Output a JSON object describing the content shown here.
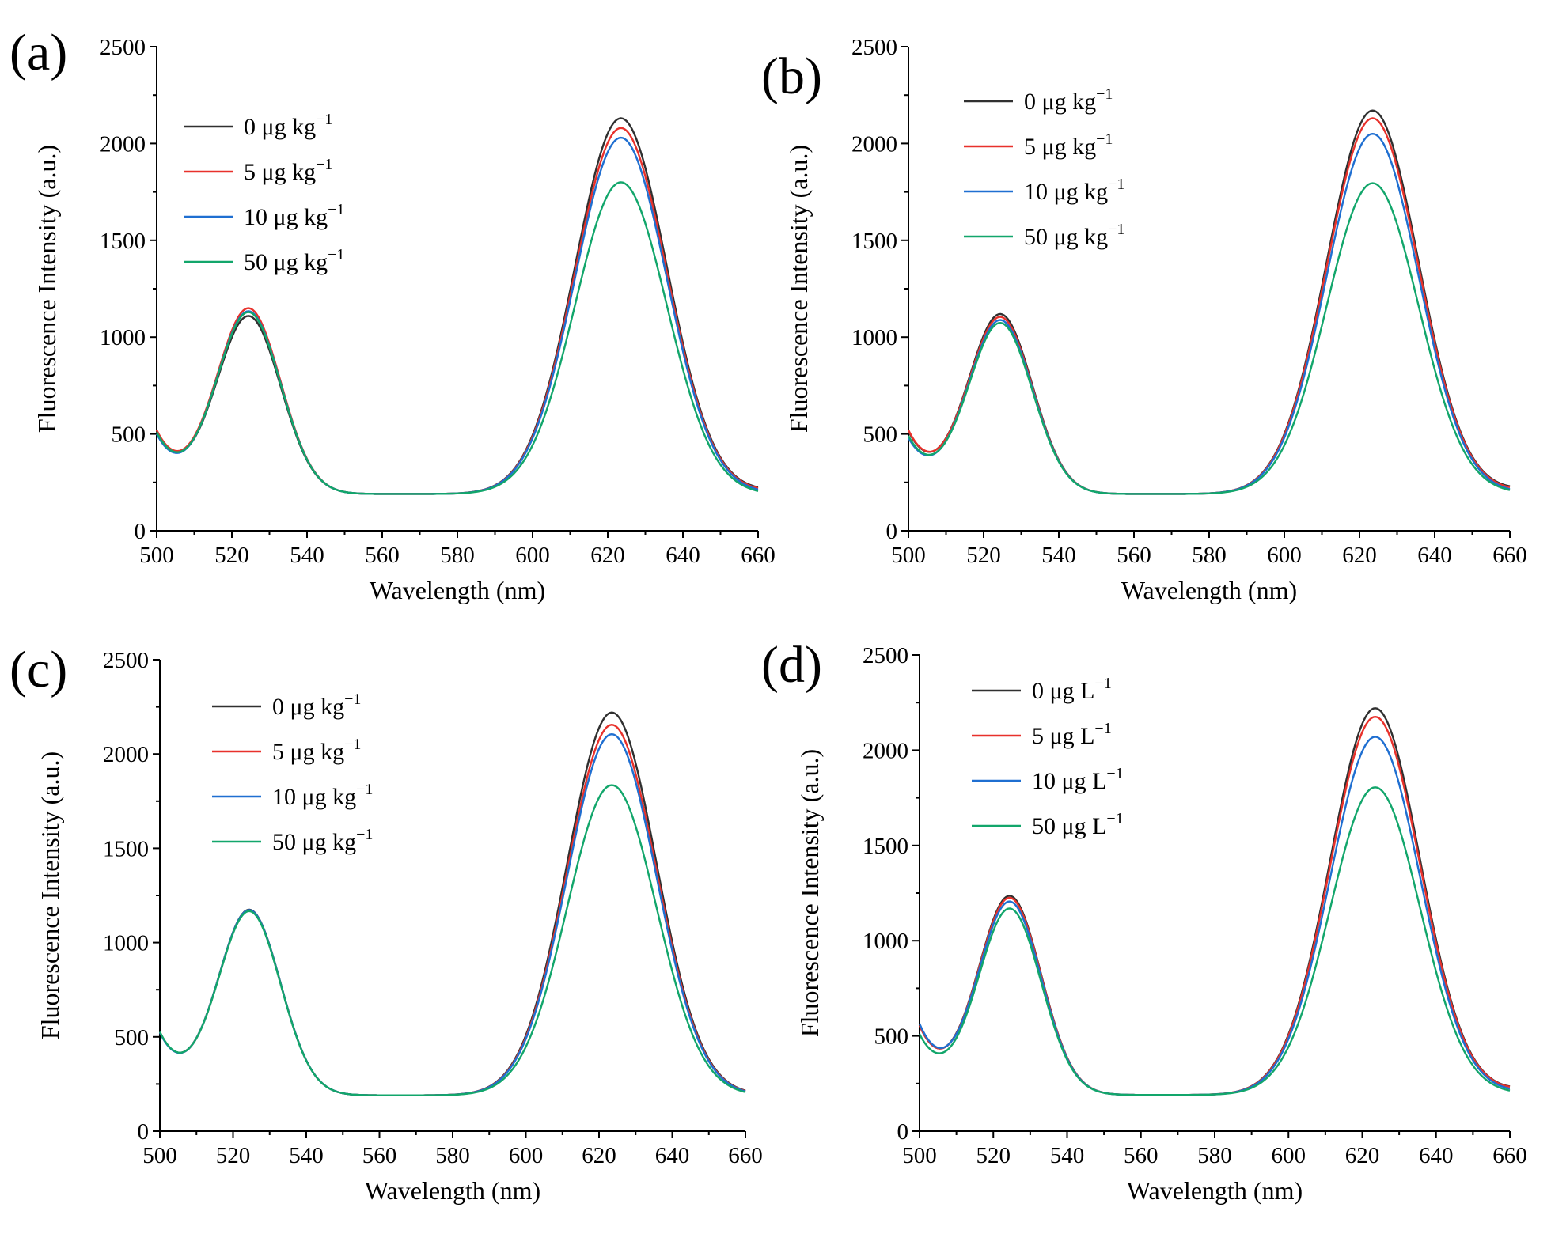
{
  "colors": {
    "black": "#303030",
    "red": "#e8312b",
    "blue": "#1f6fd1",
    "green": "#12a66b"
  },
  "chart_data": [
    {
      "type": "line",
      "panel_label": "(a)",
      "xlabel": "Wavelength (nm)",
      "ylabel": "Fluorescence Intensity (a.u.)",
      "xlim": [
        500,
        660
      ],
      "ylim": [
        0,
        2500
      ],
      "xticks": [
        "500",
        "520",
        "540",
        "560",
        "580",
        "600",
        "620",
        "640",
        "660"
      ],
      "yticks": [
        "0",
        "500",
        "1000",
        "1500",
        "2000",
        "2500"
      ],
      "legend_position": "top-left",
      "series": [
        {
          "name": "0 μg kg",
          "sup": "−1",
          "color": "#303030",
          "base": 420,
          "peak1": 1005,
          "peak2": 2035,
          "tail": 130
        },
        {
          "name": "5 μg kg",
          "sup": "−1",
          "color": "#e8312b",
          "base": 425,
          "peak1": 1045,
          "peak2": 1985,
          "tail": 125
        },
        {
          "name": "10 μg kg",
          "sup": "−1",
          "color": "#1f6fd1",
          "base": 405,
          "peak1": 1030,
          "peak2": 1935,
          "tail": 118
        },
        {
          "name": "50 μg kg",
          "sup": "−1",
          "color": "#12a66b",
          "base": 415,
          "peak1": 1025,
          "peak2": 1705,
          "tail": 110
        }
      ]
    },
    {
      "type": "line",
      "panel_label": "(b)",
      "xlabel": "Wavelength (nm)",
      "ylabel": "Fluorescence Intensity (a.u.)",
      "xlim": [
        500,
        660
      ],
      "ylim": [
        0,
        2500
      ],
      "xticks": [
        "500",
        "520",
        "540",
        "560",
        "580",
        "600",
        "620",
        "640",
        "660"
      ],
      "yticks": [
        "0",
        "500",
        "1000",
        "1500",
        "2000",
        "2500"
      ],
      "legend_position": "top-left",
      "series": [
        {
          "name": "0 μg kg",
          "sup": "−1",
          "color": "#303030",
          "base": 420,
          "peak1": 1015,
          "peak2": 2075,
          "tail": 135
        },
        {
          "name": "5 μg kg",
          "sup": "−1",
          "color": "#e8312b",
          "base": 425,
          "peak1": 1000,
          "peak2": 2035,
          "tail": 130
        },
        {
          "name": "10 μg kg",
          "sup": "−1",
          "color": "#1f6fd1",
          "base": 385,
          "peak1": 985,
          "peak2": 1955,
          "tail": 120
        },
        {
          "name": "50 μg kg",
          "sup": "−1",
          "color": "#12a66b",
          "base": 395,
          "peak1": 970,
          "peak2": 1700,
          "tail": 115
        }
      ]
    },
    {
      "type": "line",
      "panel_label": "(c)",
      "xlabel": "Wavelength (nm)",
      "ylabel": "Fluorescence Intensity (a.u.)",
      "xlim": [
        500,
        660
      ],
      "ylim": [
        0,
        2500
      ],
      "xticks": [
        "500",
        "520",
        "540",
        "560",
        "580",
        "600",
        "620",
        "640",
        "660"
      ],
      "yticks": [
        "0",
        "500",
        "1000",
        "1500",
        "2000",
        "2500"
      ],
      "legend_position": "top-center",
      "series": [
        {
          "name": "0 μg kg",
          "sup": "−1",
          "color": "#303030",
          "base": 430,
          "peak1": 1070,
          "peak2": 2125,
          "tail": 120
        },
        {
          "name": "5 μg kg",
          "sup": "−1",
          "color": "#e8312b",
          "base": 430,
          "peak1": 1065,
          "peak2": 2060,
          "tail": 118
        },
        {
          "name": "10 μg kg",
          "sup": "−1",
          "color": "#1f6fd1",
          "base": 428,
          "peak1": 1068,
          "peak2": 2010,
          "tail": 116
        },
        {
          "name": "50 μg kg",
          "sup": "−1",
          "color": "#12a66b",
          "base": 432,
          "peak1": 1062,
          "peak2": 1740,
          "tail": 112
        }
      ]
    },
    {
      "type": "line",
      "panel_label": "(d)",
      "xlabel": "Wavelength (nm)",
      "ylabel": "Fluorescence Intensity (a.u.)",
      "xlim": [
        500,
        660
      ],
      "ylim": [
        0,
        2500
      ],
      "xticks": [
        "500",
        "520",
        "540",
        "560",
        "580",
        "600",
        "620",
        "640",
        "660"
      ],
      "yticks": [
        "0",
        "500",
        "1000",
        "1500",
        "2000",
        "2500"
      ],
      "legend_position": "top-left",
      "series": [
        {
          "name": "0 μg L",
          "sup": "−1",
          "color": "#303030",
          "base": 460,
          "peak1": 1130,
          "peak2": 2125,
          "tail": 140
        },
        {
          "name": "5 μg L",
          "sup": "−1",
          "color": "#e8312b",
          "base": 460,
          "peak1": 1120,
          "peak2": 2080,
          "tail": 138
        },
        {
          "name": "10 μg L",
          "sup": "−1",
          "color": "#1f6fd1",
          "base": 470,
          "peak1": 1100,
          "peak2": 1975,
          "tail": 128
        },
        {
          "name": "50 μg L",
          "sup": "−1",
          "color": "#12a66b",
          "base": 415,
          "peak1": 1065,
          "peak2": 1710,
          "tail": 118
        }
      ]
    }
  ]
}
